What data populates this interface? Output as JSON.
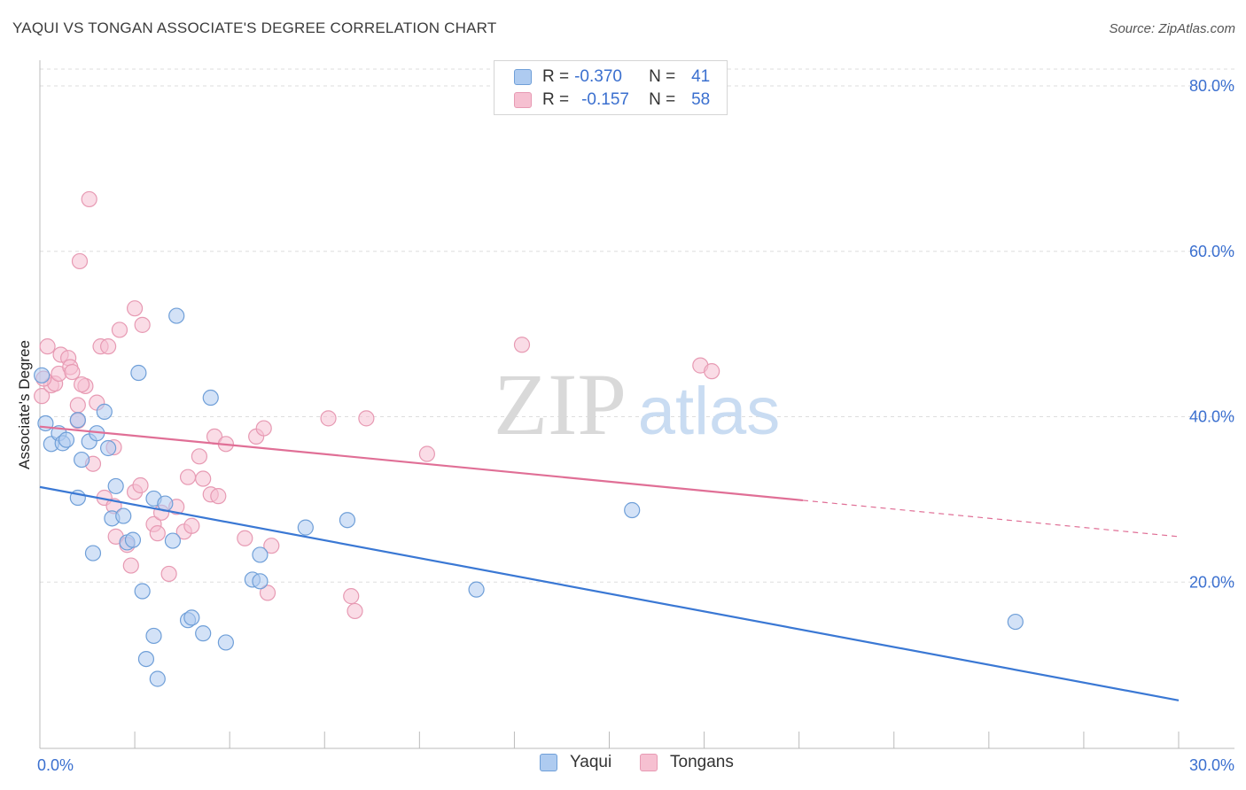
{
  "title": "YAQUI VS TONGAN ASSOCIATE'S DEGREE CORRELATION CHART",
  "source": "Source: ZipAtlas.com",
  "watermark": {
    "zip": "ZIP",
    "atlas": "atlas"
  },
  "legend_top": [
    {
      "r_label": "R =",
      "r_value": "-0.370",
      "n_label": "N =",
      "n_value": "41"
    },
    {
      "r_label": "R =",
      "r_value": "-0.157",
      "n_label": "N =",
      "n_value": "58"
    }
  ],
  "legend_bottom": [
    "Yaqui",
    "Tongans"
  ],
  "colors": {
    "yaqui_fill": "#aecbf0",
    "yaqui_stroke": "#6f9fd8",
    "yaqui_line": "#3a78d4",
    "tongan_fill": "#f6c0d1",
    "tongan_stroke": "#e79ab3",
    "tongan_line": "#e06f96",
    "tick_label": "#3a6fcf",
    "grid": "#dddddd"
  },
  "chart_data": {
    "type": "scatter",
    "title": "YAQUI VS TONGAN ASSOCIATE'S DEGREE CORRELATION CHART",
    "xlabel": "",
    "ylabel": "Associate's Degree",
    "xlim": [
      0,
      30
    ],
    "ylim": [
      0,
      80
    ],
    "x_tick_labels": [
      {
        "value": 0,
        "label": "0.0%"
      },
      {
        "value": 30,
        "label": "30.0%"
      }
    ],
    "y_tick_labels": [
      {
        "value": 20,
        "label": "20.0%"
      },
      {
        "value": 40,
        "label": "40.0%"
      },
      {
        "value": 60,
        "label": "60.0%"
      },
      {
        "value": 80,
        "label": "80.0%"
      }
    ],
    "y_gridlines": [
      20,
      40,
      60,
      80
    ],
    "series": [
      {
        "name": "Yaqui",
        "r": -0.37,
        "n": 41,
        "trend": {
          "x0": 0,
          "y0": 31.5,
          "x1": 30,
          "y1": 5.7,
          "dashed_from": null
        },
        "points": [
          [
            0.05,
            45
          ],
          [
            0.15,
            39.2
          ],
          [
            0.3,
            36.7
          ],
          [
            0.5,
            38
          ],
          [
            0.6,
            36.8
          ],
          [
            0.7,
            37.2
          ],
          [
            1.0,
            39.6
          ],
          [
            1.0,
            30.2
          ],
          [
            1.1,
            34.8
          ],
          [
            1.3,
            37
          ],
          [
            1.4,
            23.5
          ],
          [
            1.5,
            38
          ],
          [
            1.7,
            40.6
          ],
          [
            1.8,
            36.2
          ],
          [
            1.9,
            27.7
          ],
          [
            2.0,
            31.6
          ],
          [
            2.2,
            28
          ],
          [
            2.3,
            24.8
          ],
          [
            2.45,
            25.1
          ],
          [
            2.6,
            45.3
          ],
          [
            2.7,
            18.9
          ],
          [
            2.8,
            10.7
          ],
          [
            3.0,
            13.5
          ],
          [
            3.0,
            30.1
          ],
          [
            3.1,
            8.3
          ],
          [
            3.3,
            29.5
          ],
          [
            3.5,
            25
          ],
          [
            3.6,
            52.2
          ],
          [
            3.9,
            15.4
          ],
          [
            4.0,
            15.7
          ],
          [
            4.3,
            13.8
          ],
          [
            4.5,
            42.3
          ],
          [
            4.9,
            12.7
          ],
          [
            5.6,
            20.3
          ],
          [
            5.8,
            20.1
          ],
          [
            5.8,
            23.3
          ],
          [
            7.0,
            26.6
          ],
          [
            8.1,
            27.5
          ],
          [
            11.5,
            19.1
          ],
          [
            15.6,
            28.7
          ],
          [
            25.7,
            15.2
          ]
        ]
      },
      {
        "name": "Tongans",
        "r": -0.157,
        "n": 58,
        "trend": {
          "x0": 0,
          "y0": 38.8,
          "x1": 30,
          "y1": 25.5,
          "dashed_from": 20.1
        },
        "points": [
          [
            0.05,
            42.5
          ],
          [
            0.2,
            48.5
          ],
          [
            0.3,
            43.8
          ],
          [
            0.4,
            44
          ],
          [
            0.5,
            45.2
          ],
          [
            0.55,
            47.5
          ],
          [
            0.75,
            47.1
          ],
          [
            0.8,
            46
          ],
          [
            0.85,
            45.4
          ],
          [
            1.0,
            39.5
          ],
          [
            1.0,
            41.4
          ],
          [
            1.2,
            43.7
          ],
          [
            1.05,
            58.8
          ],
          [
            1.3,
            66.3
          ],
          [
            1.4,
            34.3
          ],
          [
            1.5,
            41.7
          ],
          [
            1.6,
            48.5
          ],
          [
            1.7,
            30.2
          ],
          [
            1.8,
            48.5
          ],
          [
            1.95,
            29.2
          ],
          [
            1.95,
            36.3
          ],
          [
            2.0,
            25.5
          ],
          [
            2.1,
            50.5
          ],
          [
            2.3,
            24.5
          ],
          [
            2.4,
            22
          ],
          [
            2.5,
            53.1
          ],
          [
            2.5,
            30.9
          ],
          [
            2.65,
            31.7
          ],
          [
            2.7,
            51.1
          ],
          [
            3.0,
            27
          ],
          [
            3.1,
            25.9
          ],
          [
            3.2,
            28.4
          ],
          [
            3.4,
            21
          ],
          [
            3.6,
            29.1
          ],
          [
            3.8,
            26.1
          ],
          [
            3.9,
            32.7
          ],
          [
            4.0,
            26.8
          ],
          [
            4.2,
            35.2
          ],
          [
            4.3,
            32.5
          ],
          [
            4.5,
            30.6
          ],
          [
            4.6,
            37.6
          ],
          [
            4.7,
            30.4
          ],
          [
            4.9,
            36.7
          ],
          [
            5.4,
            25.3
          ],
          [
            5.7,
            37.6
          ],
          [
            5.9,
            38.6
          ],
          [
            6.0,
            18.7
          ],
          [
            6.1,
            24.4
          ],
          [
            7.6,
            39.8
          ],
          [
            8.2,
            18.3
          ],
          [
            8.3,
            16.5
          ],
          [
            8.6,
            39.8
          ],
          [
            10.2,
            35.5
          ],
          [
            12.7,
            48.7
          ],
          [
            17.4,
            46.2
          ],
          [
            17.7,
            45.5
          ],
          [
            0.1,
            44.6
          ],
          [
            1.1,
            43.9
          ]
        ]
      }
    ]
  }
}
